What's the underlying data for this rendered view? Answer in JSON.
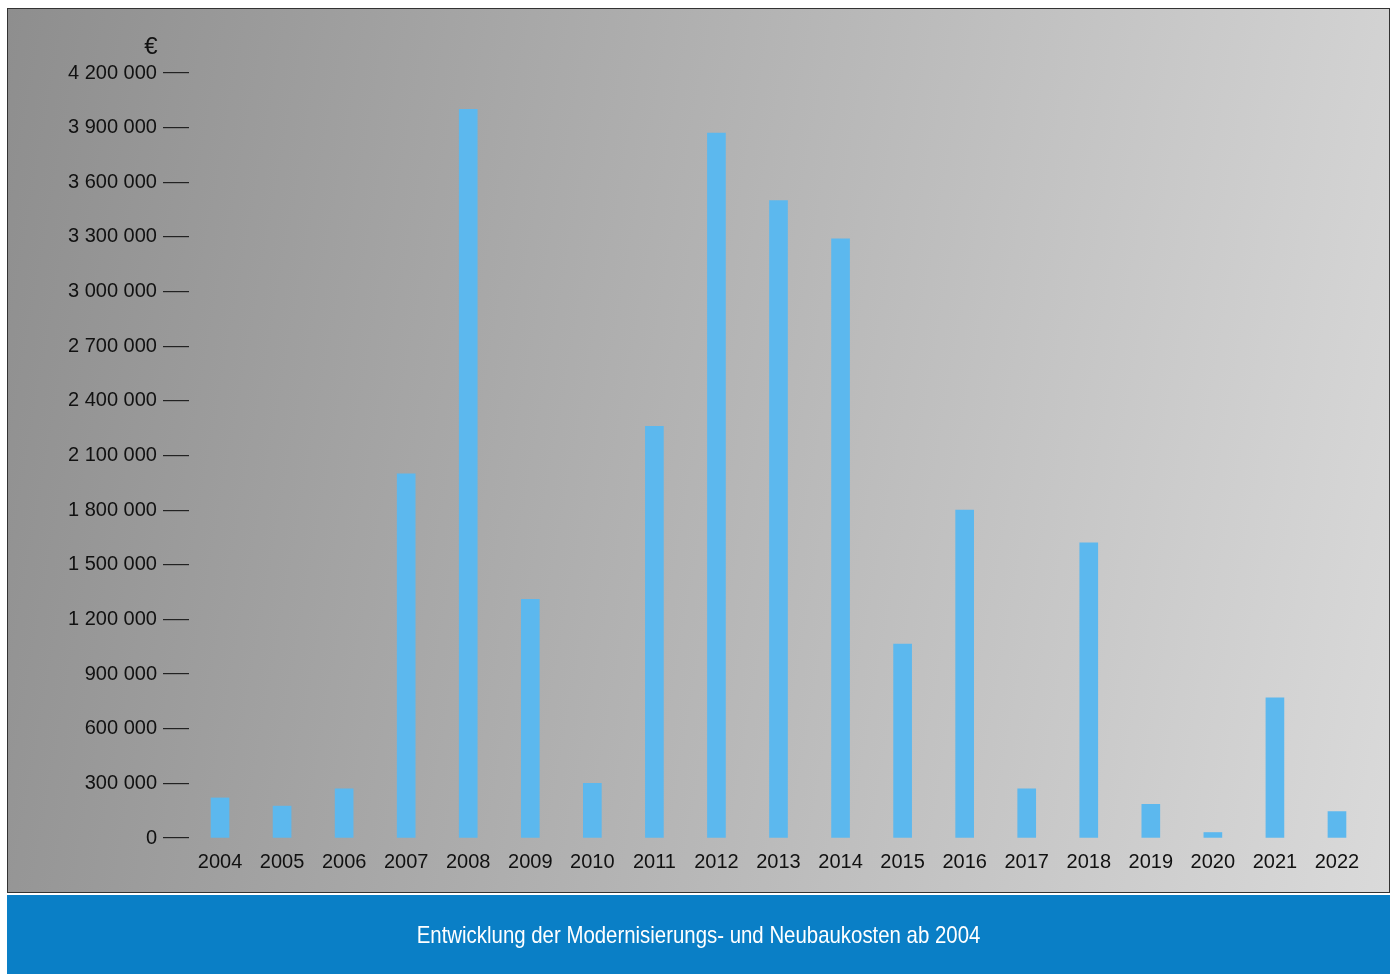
{
  "chart_data": {
    "type": "bar",
    "title": "Entwicklung der Modernisierungs- und Neubaukosten ab 2004",
    "ylabel": "€",
    "categories": [
      "2004",
      "2005",
      "2006",
      "2007",
      "2008",
      "2009",
      "2010",
      "2011",
      "2012",
      "2013",
      "2014",
      "2015",
      "2016",
      "2017",
      "2018",
      "2019",
      "2020",
      "2021",
      "2022"
    ],
    "values": [
      220000,
      175000,
      270000,
      2000000,
      4000000,
      1310000,
      300000,
      2260000,
      3870000,
      3500000,
      3290000,
      1065000,
      1800000,
      270000,
      1620000,
      185000,
      30000,
      770000,
      145000
    ],
    "color": "#5cb8ee",
    "ylim": [
      0,
      4200000
    ],
    "yticks": [
      {
        "value": 0,
        "label": "0"
      },
      {
        "value": 300000,
        "label": "300 000"
      },
      {
        "value": 600000,
        "label": "600 000"
      },
      {
        "value": 900000,
        "label": "900 000"
      },
      {
        "value": 1200000,
        "label": "1 200 000"
      },
      {
        "value": 1500000,
        "label": "1 500 000"
      },
      {
        "value": 1800000,
        "label": "1 800 000"
      },
      {
        "value": 2100000,
        "label": "2 100 000"
      },
      {
        "value": 2400000,
        "label": "2 400 000"
      },
      {
        "value": 2700000,
        "label": "2 700 000"
      },
      {
        "value": 3000000,
        "label": "3 000 000"
      },
      {
        "value": 3300000,
        "label": "3 300 000"
      },
      {
        "value": 3600000,
        "label": "3 600 000"
      },
      {
        "value": 3900000,
        "label": "3 900 000"
      },
      {
        "value": 4200000,
        "label": "4 200 000"
      }
    ],
    "grid": false,
    "legend": false
  }
}
